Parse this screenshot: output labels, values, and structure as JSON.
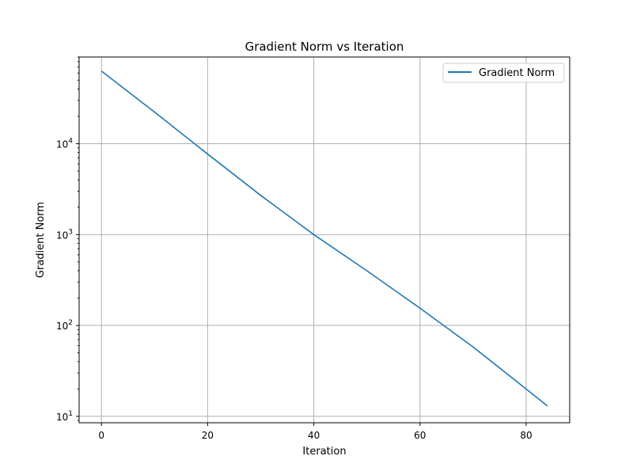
{
  "chart_data": {
    "type": "line",
    "title": "Gradient Norm vs Iteration",
    "xlabel": "Iteration",
    "ylabel": "Gradient Norm",
    "yscale": "log",
    "xlim": [
      -4.2,
      88.2
    ],
    "ylim": [
      8.5,
      90000
    ],
    "xticks": [
      0,
      20,
      40,
      60,
      80
    ],
    "yticks": [
      {
        "value": 10,
        "base": "10",
        "exp": "1"
      },
      {
        "value": 100,
        "base": "10",
        "exp": "2"
      },
      {
        "value": 1000,
        "base": "10",
        "exp": "3"
      },
      {
        "value": 10000,
        "base": "10",
        "exp": "4"
      }
    ],
    "grid": true,
    "legend": {
      "position": "upper right"
    },
    "colors": {
      "series": "#1f77b4",
      "grid": "#b0b0b0",
      "axis": "#000000"
    },
    "series": [
      {
        "name": "Gradient Norm",
        "x": [
          0,
          10,
          20,
          30,
          40,
          50,
          60,
          70,
          80,
          84
        ],
        "y": [
          63000,
          22300,
          7700,
          2700,
          1000,
          400,
          155,
          58,
          20,
          13
        ]
      }
    ]
  }
}
